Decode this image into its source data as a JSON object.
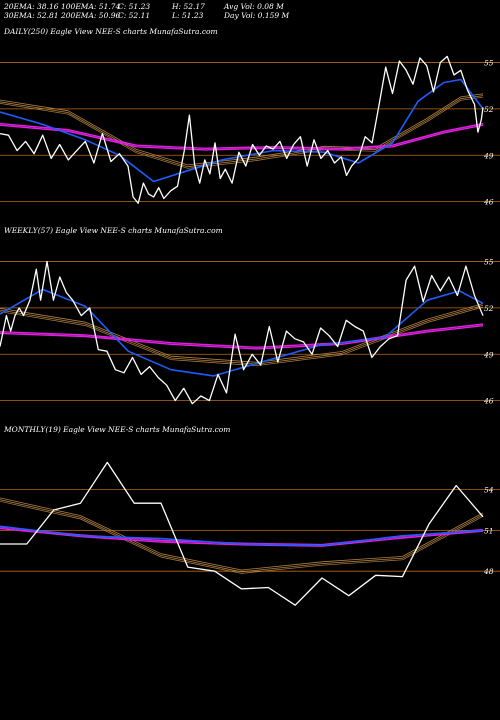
{
  "header": {
    "row1": [
      "20EMA: 38.16",
      "100EMA: 51.74",
      "C: 51.23",
      "H: 52.17",
      "Avg Vol: 0.08  M"
    ],
    "row2": [
      "30EMA: 52.81",
      "200EMA: 50.96",
      "C: 52.11",
      "L: 51.23",
      "Day Vol: 0.159 M"
    ]
  },
  "chart_data": [
    {
      "type": "line",
      "title": "DAILY(250) Eagle  View  NEE-S charts MunafaSutra.com",
      "yticks": [
        55,
        52,
        49,
        46
      ],
      "ylim": [
        45.2,
        56.2
      ],
      "xcount": 250,
      "colors": {
        "price": "#ffffff",
        "ema_blue": "#1e5cff",
        "ema_mag": "#e020e0",
        "ema_gold": "#b08040",
        "grid": "#b86a1a"
      },
      "series": [
        {
          "key": "price",
          "points": [
            [
              0,
              50.4
            ],
            [
              5,
              50.3
            ],
            [
              10,
              49.3
            ],
            [
              15,
              49.9
            ],
            [
              20,
              49.1
            ],
            [
              25,
              50.3
            ],
            [
              30,
              48.8
            ],
            [
              35,
              49.7
            ],
            [
              40,
              48.7
            ],
            [
              45,
              49.3
            ],
            [
              50,
              49.9
            ],
            [
              55,
              48.5
            ],
            [
              60,
              50.4
            ],
            [
              65,
              48.6
            ],
            [
              70,
              49.1
            ],
            [
              75,
              48.3
            ],
            [
              78,
              46.3
            ],
            [
              81,
              45.9
            ],
            [
              84,
              47.2
            ],
            [
              87,
              46.5
            ],
            [
              90,
              46.3
            ],
            [
              93,
              46.9
            ],
            [
              96,
              46.2
            ],
            [
              100,
              46.7
            ],
            [
              104,
              47.0
            ],
            [
              108,
              49.3
            ],
            [
              111,
              51.6
            ],
            [
              114,
              48.4
            ],
            [
              117,
              47.2
            ],
            [
              120,
              48.7
            ],
            [
              123,
              47.8
            ],
            [
              126,
              49.8
            ],
            [
              129,
              47.5
            ],
            [
              132,
              48.1
            ],
            [
              136,
              47.2
            ],
            [
              140,
              49.2
            ],
            [
              144,
              48.3
            ],
            [
              148,
              49.7
            ],
            [
              152,
              49.0
            ],
            [
              156,
              49.6
            ],
            [
              160,
              49.4
            ],
            [
              164,
              49.9
            ],
            [
              168,
              48.8
            ],
            [
              172,
              49.7
            ],
            [
              176,
              50.2
            ],
            [
              180,
              48.3
            ],
            [
              184,
              50.0
            ],
            [
              188,
              48.8
            ],
            [
              192,
              49.3
            ],
            [
              196,
              48.5
            ],
            [
              200,
              48.9
            ],
            [
              203,
              47.7
            ],
            [
              206,
              48.3
            ],
            [
              210,
              48.8
            ],
            [
              214,
              50.2
            ],
            [
              218,
              49.8
            ],
            [
              222,
              52.2
            ],
            [
              226,
              54.7
            ],
            [
              230,
              53.0
            ],
            [
              234,
              55.1
            ],
            [
              238,
              54.5
            ],
            [
              242,
              53.6
            ],
            [
              246,
              55.3
            ],
            [
              250,
              54.8
            ],
            [
              254,
              53.1
            ],
            [
              258,
              55.0
            ],
            [
              262,
              55.4
            ],
            [
              266,
              54.2
            ],
            [
              270,
              54.5
            ],
            [
              274,
              53.2
            ],
            [
              278,
              52.3
            ],
            [
              280,
              50.5
            ],
            [
              282,
              51.3
            ],
            [
              283,
              52.1
            ]
          ]
        },
        {
          "key": "ema_blue",
          "points": [
            [
              0,
              51.8
            ],
            [
              25,
              51.0
            ],
            [
              50,
              50.0
            ],
            [
              70,
              49.0
            ],
            [
              90,
              47.3
            ],
            [
              110,
              48.0
            ],
            [
              130,
              48.7
            ],
            [
              160,
              49.3
            ],
            [
              190,
              49.2
            ],
            [
              210,
              48.5
            ],
            [
              230,
              49.8
            ],
            [
              245,
              52.5
            ],
            [
              260,
              53.7
            ],
            [
              270,
              53.9
            ],
            [
              283,
              52.0
            ]
          ]
        },
        {
          "key": "ema_mag",
          "points": [
            [
              0,
              51.0
            ],
            [
              40,
              50.6
            ],
            [
              80,
              49.6
            ],
            [
              120,
              49.4
            ],
            [
              160,
              49.5
            ],
            [
              200,
              49.4
            ],
            [
              230,
              49.6
            ],
            [
              260,
              50.5
            ],
            [
              283,
              51.0
            ]
          ]
        },
        {
          "key": "ema_gold",
          "points": [
            [
              0,
              52.5
            ],
            [
              40,
              51.8
            ],
            [
              80,
              49.3
            ],
            [
              110,
              48.3
            ],
            [
              150,
              48.8
            ],
            [
              190,
              49.5
            ],
            [
              220,
              49.4
            ],
            [
              250,
              51.3
            ],
            [
              270,
              52.7
            ],
            [
              283,
              52.9
            ]
          ]
        }
      ]
    },
    {
      "type": "line",
      "title": "WEEKLY(57) Eagle  View  NEE-S charts MunafaSutra.com",
      "yticks": [
        55,
        52,
        49,
        46
      ],
      "ylim": [
        45.2,
        56.2
      ],
      "xcount": 57,
      "colors": {
        "price": "#ffffff",
        "ema_blue": "#1e5cff",
        "ema_mag": "#e020e0",
        "ema_gold": "#b08040",
        "grid": "#b86a1a"
      },
      "series": [
        {
          "key": "price",
          "points": [
            [
              0,
              49.5
            ],
            [
              3,
              51.5
            ],
            [
              5,
              50.5
            ],
            [
              7,
              51.5
            ],
            [
              9,
              52.0
            ],
            [
              11,
              51.5
            ],
            [
              14,
              52.5
            ],
            [
              17,
              54.5
            ],
            [
              19,
              52.5
            ],
            [
              22,
              55.0
            ],
            [
              25,
              52.5
            ],
            [
              28,
              54.0
            ],
            [
              31,
              53.0
            ],
            [
              34,
              52.5
            ],
            [
              38,
              51.5
            ],
            [
              42,
              52.0
            ],
            [
              46,
              49.3
            ],
            [
              50,
              49.2
            ],
            [
              54,
              48.0
            ],
            [
              58,
              47.8
            ],
            [
              62,
              48.8
            ],
            [
              66,
              47.7
            ],
            [
              70,
              48.2
            ],
            [
              74,
              47.5
            ],
            [
              78,
              47.0
            ],
            [
              82,
              46.0
            ],
            [
              86,
              46.8
            ],
            [
              90,
              45.8
            ],
            [
              94,
              46.3
            ],
            [
              98,
              46.0
            ],
            [
              102,
              47.7
            ],
            [
              106,
              46.5
            ],
            [
              110,
              50.3
            ],
            [
              114,
              48.0
            ],
            [
              118,
              49.0
            ],
            [
              122,
              48.3
            ],
            [
              126,
              50.8
            ],
            [
              130,
              48.5
            ],
            [
              134,
              50.5
            ],
            [
              138,
              50.0
            ],
            [
              142,
              49.8
            ],
            [
              146,
              49.0
            ],
            [
              150,
              50.7
            ],
            [
              154,
              50.2
            ],
            [
              158,
              49.5
            ],
            [
              162,
              51.2
            ],
            [
              166,
              50.8
            ],
            [
              170,
              50.5
            ],
            [
              174,
              48.8
            ],
            [
              178,
              49.5
            ],
            [
              182,
              50.0
            ],
            [
              186,
              50.2
            ],
            [
              190,
              53.8
            ],
            [
              194,
              54.7
            ],
            [
              198,
              52.4
            ],
            [
              202,
              54.1
            ],
            [
              206,
              53.1
            ],
            [
              210,
              54.0
            ],
            [
              214,
              52.8
            ],
            [
              218,
              54.7
            ],
            [
              222,
              52.8
            ],
            [
              226,
              51.5
            ]
          ]
        },
        {
          "key": "ema_blue",
          "points": [
            [
              0,
              51.6
            ],
            [
              20,
              53.2
            ],
            [
              40,
              52.1
            ],
            [
              60,
              49.2
            ],
            [
              80,
              48.0
            ],
            [
              100,
              47.6
            ],
            [
              120,
              48.4
            ],
            [
              150,
              49.6
            ],
            [
              180,
              50.1
            ],
            [
              200,
              52.5
            ],
            [
              215,
              53.1
            ],
            [
              226,
              52.3
            ]
          ]
        },
        {
          "key": "ema_mag",
          "points": [
            [
              0,
              50.4
            ],
            [
              40,
              50.2
            ],
            [
              80,
              49.7
            ],
            [
              120,
              49.4
            ],
            [
              160,
              49.7
            ],
            [
              200,
              50.5
            ],
            [
              226,
              50.9
            ]
          ]
        },
        {
          "key": "ema_gold",
          "points": [
            [
              0,
              51.9
            ],
            [
              40,
              51.0
            ],
            [
              80,
              48.8
            ],
            [
              120,
              48.4
            ],
            [
              160,
              49.1
            ],
            [
              200,
              51.2
            ],
            [
              226,
              52.2
            ]
          ]
        }
      ]
    },
    {
      "type": "line",
      "title": "MONTHLY(19) Eagle  View  NEE-S charts MunafaSutra.com",
      "yticks": [
        54,
        51,
        48
      ],
      "ylim": [
        45.0,
        57.5
      ],
      "xcount": 19,
      "colors": {
        "price": "#ffffff",
        "ema_blue": "#1e5cff",
        "ema_mag": "#e020e0",
        "ema_gold": "#b08040",
        "grid": "#b86a1a"
      },
      "series": [
        {
          "key": "price",
          "points": [
            [
              0,
              50.0
            ],
            [
              1,
              50.0
            ],
            [
              2,
              52.5
            ],
            [
              3,
              53.0
            ],
            [
              4,
              56.0
            ],
            [
              5,
              53.0
            ],
            [
              6,
              53.0
            ],
            [
              7,
              48.3
            ],
            [
              8,
              48.0
            ],
            [
              9,
              46.7
            ],
            [
              10,
              46.8
            ],
            [
              11,
              45.5
            ],
            [
              12,
              47.5
            ],
            [
              13,
              46.2
            ],
            [
              14,
              47.7
            ],
            [
              15,
              47.6
            ],
            [
              16,
              51.5
            ],
            [
              17,
              54.3
            ],
            [
              18,
              52.0
            ]
          ]
        },
        {
          "key": "ema_blue",
          "points": [
            [
              0,
              51.3
            ],
            [
              3,
              50.6
            ],
            [
              6,
              50.4
            ],
            [
              9,
              50.0
            ],
            [
              12,
              49.9
            ],
            [
              15,
              50.6
            ],
            [
              18,
              51.0
            ]
          ]
        },
        {
          "key": "ema_mag",
          "points": [
            [
              0,
              51.2
            ],
            [
              3,
              50.6
            ],
            [
              6,
              50.2
            ],
            [
              9,
              50.0
            ],
            [
              12,
              49.9
            ],
            [
              15,
              50.5
            ],
            [
              18,
              51.0
            ]
          ]
        },
        {
          "key": "ema_gold",
          "points": [
            [
              0,
              53.3
            ],
            [
              3,
              52.0
            ],
            [
              6,
              49.2
            ],
            [
              9,
              48.0
            ],
            [
              12,
              48.6
            ],
            [
              15,
              49.0
            ],
            [
              18,
              52.2
            ]
          ]
        }
      ]
    }
  ]
}
